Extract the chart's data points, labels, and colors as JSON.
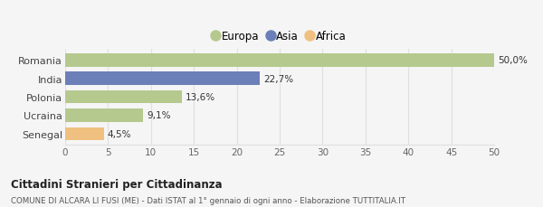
{
  "categories": [
    "Romania",
    "India",
    "Polonia",
    "Ucraina",
    "Senegal"
  ],
  "values": [
    50.0,
    22.7,
    13.6,
    9.1,
    4.5
  ],
  "labels": [
    "50,0%",
    "22,7%",
    "13,6%",
    "9,1%",
    "4,5%"
  ],
  "colors": [
    "#b5c98e",
    "#6b80b8",
    "#b5c98e",
    "#b5c98e",
    "#f0c080"
  ],
  "legend_labels": [
    "Europa",
    "Asia",
    "Africa"
  ],
  "legend_colors": [
    "#b5c98e",
    "#6b80b8",
    "#f0c080"
  ],
  "xlim": [
    0,
    50
  ],
  "xticks": [
    0,
    5,
    10,
    15,
    20,
    25,
    30,
    35,
    40,
    45,
    50
  ],
  "title_bold": "Cittadini Stranieri per Cittadinanza",
  "subtitle": "COMUNE DI ALCARA LI FUSI (ME) - Dati ISTAT al 1° gennaio di ogni anno - Elaborazione TUTTITALIA.IT",
  "bg_color": "#f5f5f5",
  "bar_height": 0.72,
  "grid_color": "#e0e0e0"
}
